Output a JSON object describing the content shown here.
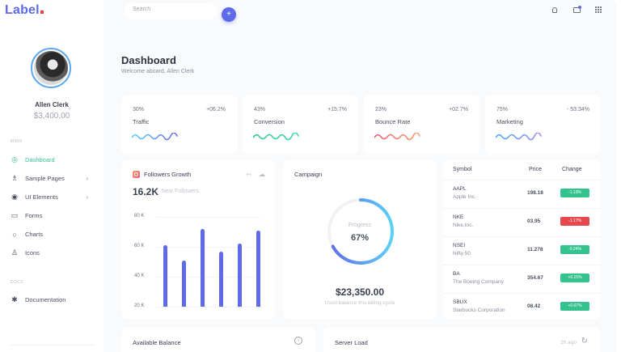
{
  "brand": {
    "logo_text": "Label",
    "accent": "#5e6ae8",
    "dot_color": "#f04438"
  },
  "user": {
    "name": "Allen Clerk",
    "balance": "$3,400,00"
  },
  "sidebar": {
    "section_main": "MAIN",
    "items": [
      {
        "label": "Dashboard",
        "icon": "dashboard-icon",
        "glyph": "◎",
        "active": true,
        "chevron": false
      },
      {
        "label": "Sample Pages",
        "icon": "flask-icon",
        "glyph": "♗",
        "active": false,
        "chevron": true
      },
      {
        "label": "UI Elements",
        "icon": "globe-icon",
        "glyph": "◉",
        "active": false,
        "chevron": true
      },
      {
        "label": "Forms",
        "icon": "calendar-icon",
        "glyph": "▭",
        "active": false,
        "chevron": false
      },
      {
        "label": "Charts",
        "icon": "circle-icon",
        "glyph": "○",
        "active": false,
        "chevron": false
      },
      {
        "label": "Icons",
        "icon": "badge-icon",
        "glyph": "♙",
        "active": false,
        "chevron": false
      }
    ],
    "section_docs": "DOCS",
    "docs_items": [
      {
        "label": "Documentation",
        "icon": "asterisk-icon",
        "glyph": "✱"
      }
    ],
    "chevron_glyph": "›"
  },
  "topbar": {
    "search_placeholder": "Search",
    "search_button_glyph": "+",
    "icons": [
      "bell-icon",
      "message-icon",
      "apps-grid-icon"
    ]
  },
  "page": {
    "title": "Dashboard",
    "subtitle": "Welcome aboard, Allen Clerk"
  },
  "stats": [
    {
      "pct": "30%",
      "delta": "+06.2%",
      "label": "Traffic",
      "colors": [
        "#5ad1f5",
        "#6b6cf0"
      ]
    },
    {
      "pct": "43%",
      "delta": "+15.7%",
      "label": "Conversion",
      "colors": [
        "#34c38f",
        "#3dd6b0"
      ]
    },
    {
      "pct": "23%",
      "delta": "+02.7%",
      "label": "Bounce Rate",
      "colors": [
        "#f0567a",
        "#f7a26b"
      ]
    },
    {
      "pct": "75%",
      "delta": "- 53.34%",
      "label": "Marketing",
      "colors": [
        "#4aa8f5",
        "#a18cf0"
      ]
    }
  ],
  "followers": {
    "title": "Followers Growth",
    "count": "16.2K",
    "count_label": "New Followers",
    "header_icons": [
      "expand-icon",
      "cloud-icon"
    ]
  },
  "chart_data": {
    "type": "bar",
    "title": "Followers Growth",
    "categories": [
      "1",
      "2",
      "3",
      "4",
      "5",
      "6"
    ],
    "values": [
      61,
      51,
      72,
      57,
      62,
      71
    ],
    "ylabel": "",
    "xlabel": "",
    "yticks": [
      "80 K",
      "60 K",
      "40 K",
      "20 K"
    ],
    "ylim": [
      20,
      80
    ],
    "unit": "K",
    "color": "#5e6ae8",
    "grid": true
  },
  "campaign": {
    "title": "Campaign",
    "progress_label": "Progress",
    "progress_value": "67%",
    "progress": 67,
    "amount": "$23,350.00",
    "amount_label": "Used balance this billing cycle"
  },
  "stocks": {
    "headers": {
      "symbol": "Symbol",
      "price": "Price",
      "change": "Change"
    },
    "rows": [
      {
        "symbol": "AAPL",
        "company": "Apple Inc.",
        "price": "198.18",
        "change": "-1.19%",
        "color": "#34c38f"
      },
      {
        "symbol": "NKE",
        "company": "Nike,Inc.",
        "price": "03.95",
        "change": "-1.17%",
        "color": "#e5484d"
      },
      {
        "symbol": "NSEI",
        "company": "Nifty 50",
        "price": "11.278",
        "change": "-0.24%",
        "color": "#34c38f"
      },
      {
        "symbol": "BA",
        "company": "The Boeing Company",
        "price": "354.67",
        "change": "+0.15%",
        "color": "#34c38f"
      },
      {
        "symbol": "SBUX",
        "company": "Starbucks Corporation",
        "price": "08.42",
        "change": "+0.67%",
        "color": "#34c38f"
      }
    ]
  },
  "bottom": {
    "balance_title": "Available Balance",
    "balance_icon": "info-icon",
    "server_title": "Server Load",
    "server_time": "2h ago",
    "server_icon": "refresh-icon"
  }
}
